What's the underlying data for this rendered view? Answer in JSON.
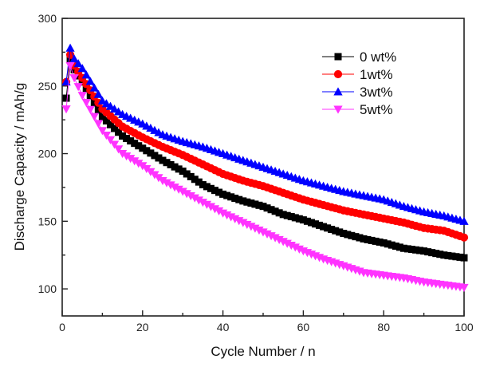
{
  "chart_data": {
    "type": "line",
    "title": "",
    "xlabel": "Cycle Number / n",
    "ylabel": "Discharge Capacity / mAh/g",
    "xlim": [
      0,
      100
    ],
    "ylim": [
      80,
      300
    ],
    "x_ticks": [
      0,
      20,
      40,
      60,
      80,
      100
    ],
    "x_tick_labels": [
      "0",
      "20",
      "40",
      "60",
      "80",
      "100"
    ],
    "x_minor_step": 10,
    "y_ticks": [
      100,
      150,
      200,
      250,
      300
    ],
    "y_tick_labels": [
      "100",
      "150",
      "200",
      "250",
      "300"
    ],
    "y_minor_step": 25,
    "grid": false,
    "legend_position": "top-right",
    "x": [
      1,
      2,
      3,
      4,
      5,
      6,
      7,
      8,
      9,
      10,
      11,
      12,
      13,
      14,
      15,
      16,
      17,
      18,
      19,
      20,
      21,
      22,
      23,
      24,
      25,
      26,
      27,
      28,
      29,
      30,
      31,
      32,
      33,
      34,
      35,
      36,
      37,
      38,
      39,
      40,
      41,
      42,
      43,
      44,
      45,
      46,
      47,
      48,
      49,
      50,
      51,
      52,
      53,
      54,
      55,
      56,
      57,
      58,
      59,
      60,
      61,
      62,
      63,
      64,
      65,
      66,
      67,
      68,
      69,
      70,
      71,
      72,
      73,
      74,
      75,
      76,
      77,
      78,
      79,
      80,
      81,
      82,
      83,
      84,
      85,
      86,
      87,
      88,
      89,
      90,
      91,
      92,
      93,
      94,
      95,
      96,
      97,
      98,
      99,
      100
    ],
    "series": [
      {
        "name": "0 wt%",
        "color": "#000000",
        "marker": "square",
        "values": [
          241,
          270,
          262,
          257.5,
          253,
          247.8,
          242.6,
          237.4,
          232.2,
          227,
          224.2,
          221.4,
          218.6,
          215.8,
          213,
          211.2,
          209.4,
          207.6,
          205.8,
          204,
          202.2,
          200.4,
          198.6,
          196.8,
          195,
          193.4,
          191.8,
          190.2,
          188.6,
          187,
          185,
          183,
          181,
          179,
          177,
          175.6,
          174.2,
          172.8,
          171.4,
          170,
          169,
          168,
          167,
          166,
          165,
          164.2,
          163.4,
          162.6,
          161.8,
          161,
          159.8,
          158.6,
          157.4,
          156.2,
          155,
          154.2,
          153.4,
          152.6,
          151.8,
          151,
          150,
          149,
          148,
          147,
          146,
          145,
          144,
          143,
          142,
          141,
          140.2,
          139.4,
          138.6,
          137.8,
          137,
          136.4,
          135.8,
          135.2,
          134.6,
          134,
          133.2,
          132.4,
          131.6,
          130.8,
          130,
          129.6,
          129.2,
          128.8,
          128.4,
          128,
          127.4,
          126.8,
          126.2,
          125.6,
          125,
          124.6,
          124.2,
          123.8,
          123.4,
          123
        ]
      },
      {
        "name": "1wt%",
        "color": "#ff0000",
        "marker": "circle",
        "values": [
          253,
          273,
          265,
          260.5,
          256,
          251.4,
          246.8,
          242.2,
          237.6,
          233,
          230.4,
          227.8,
          225.2,
          222.6,
          220,
          218.4,
          216.8,
          215.2,
          213.6,
          212,
          210.6,
          209.2,
          207.8,
          206.4,
          205,
          203.8,
          202.6,
          201.4,
          200.2,
          199,
          197.6,
          196.2,
          194.8,
          193.4,
          192,
          190.6,
          189.2,
          187.8,
          186.4,
          185,
          184,
          183,
          182,
          181,
          180,
          179.2,
          178.4,
          177.6,
          176.8,
          176,
          175,
          174,
          173,
          172,
          171,
          170,
          169,
          168,
          167,
          166,
          165.2,
          164.4,
          163.6,
          162.8,
          162,
          161.2,
          160.4,
          159.6,
          158.8,
          158,
          157.4,
          156.8,
          156.2,
          155.6,
          155,
          154.4,
          153.8,
          153.2,
          152.6,
          152,
          151.4,
          150.8,
          150.2,
          149.6,
          149,
          148.2,
          147.4,
          146.6,
          145.8,
          145,
          144.6,
          144.2,
          143.8,
          143.4,
          143,
          142,
          141,
          140,
          139,
          138
        ]
      },
      {
        "name": "3wt%",
        "color": "#0000ff",
        "marker": "triangle-up",
        "values": [
          253,
          278,
          270,
          266.5,
          263,
          258.2,
          253.4,
          248.6,
          243.8,
          239,
          237,
          235,
          233,
          231,
          229,
          227.6,
          226.2,
          224.8,
          223.4,
          222,
          220.4,
          218.8,
          217.2,
          215.6,
          214,
          213,
          212,
          211,
          210,
          209,
          208.2,
          207.4,
          206.6,
          205.8,
          205,
          204,
          203,
          202,
          201,
          200,
          199,
          198,
          197,
          196,
          195,
          194,
          193,
          192,
          191,
          190,
          189,
          188,
          187,
          186,
          185,
          184,
          183,
          182,
          181,
          180,
          179.2,
          178.4,
          177.6,
          176.8,
          176,
          175.2,
          174.4,
          173.6,
          172.8,
          172,
          171.4,
          170.8,
          170.2,
          169.6,
          169,
          168.4,
          167.8,
          167.2,
          166.6,
          166,
          165,
          164,
          163,
          162,
          161,
          160.2,
          159.4,
          158.6,
          157.8,
          157,
          156.4,
          155.8,
          155.2,
          154.6,
          154,
          153.2,
          152.4,
          151.6,
          150.8,
          150
        ]
      },
      {
        "name": "5wt%",
        "color": "#ff33ff",
        "marker": "triangle-down",
        "values": [
          233,
          265,
          256,
          249.5,
          243,
          237.8,
          232.6,
          227.4,
          222.2,
          217,
          213.6,
          210.2,
          206.8,
          203.4,
          200,
          198.2,
          196.4,
          194.6,
          192.8,
          191,
          188.8,
          186.6,
          184.4,
          182.2,
          180,
          178.4,
          176.8,
          175.2,
          173.6,
          172,
          170.4,
          168.8,
          167.2,
          165.6,
          164,
          162.4,
          160.8,
          159.2,
          157.6,
          156,
          154.6,
          153.2,
          151.8,
          150.4,
          149,
          147.6,
          146.2,
          144.8,
          143.4,
          142,
          140.6,
          139.2,
          137.8,
          136.4,
          135,
          133.6,
          132.2,
          130.8,
          129.4,
          128,
          126.8,
          125.6,
          124.4,
          123.2,
          122,
          121,
          120,
          119,
          118,
          117,
          116,
          115,
          114,
          113,
          112,
          111.6,
          111.2,
          110.8,
          110.4,
          110,
          109.6,
          109.2,
          108.8,
          108.4,
          108,
          107.4,
          106.8,
          106.2,
          105.6,
          105,
          104.6,
          104.2,
          103.8,
          103.4,
          103,
          102.6,
          102.2,
          101.8,
          101.4,
          101
        ]
      }
    ]
  }
}
